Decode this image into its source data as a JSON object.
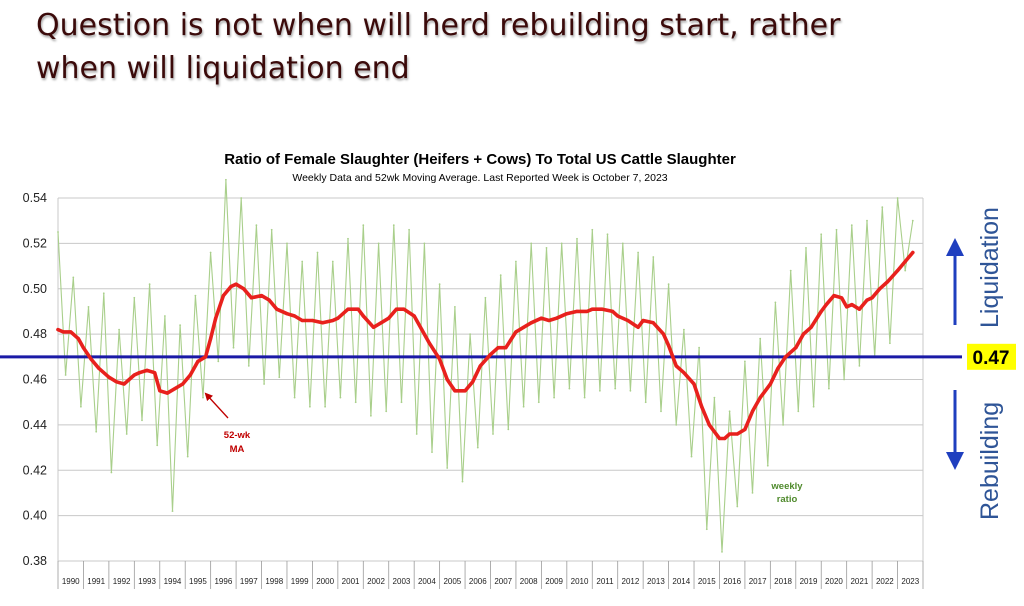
{
  "slide": {
    "title_line1": "Question is not when will herd rebuilding start, rather",
    "title_line2": "when will liquidation end"
  },
  "chart_data": {
    "type": "line",
    "title": "Ratio of Female Slaughter (Heifers + Cows) To Total US Cattle Slaughter",
    "subtitle": "Weekly Data and 52wk Moving Average.  Last Reported Week is October 7, 2023",
    "xlabel": "",
    "ylabel": "",
    "ylim": [
      0.38,
      0.54
    ],
    "yticks": [
      "0.54",
      "0.52",
      "0.50",
      "0.48",
      "0.46",
      "0.44",
      "0.42",
      "0.40",
      "0.38"
    ],
    "xlim": [
      1990,
      2024
    ],
    "xticks": [
      "1990",
      "1991",
      "1992",
      "1993",
      "1994",
      "1995",
      "1996",
      "1997",
      "1998",
      "1999",
      "2000",
      "2001",
      "2002",
      "2003",
      "2004",
      "2005",
      "2006",
      "2007",
      "2008",
      "2009",
      "2010",
      "2011",
      "2012",
      "2013",
      "2014",
      "2015",
      "2016",
      "2017",
      "2018",
      "2019",
      "2020",
      "2021",
      "2022",
      "2023"
    ],
    "grid": "horizontal",
    "colors": {
      "moving_average": "#e8211d",
      "weekly": "#a9cf8b",
      "reference": "#1a1aa6",
      "arrows": "#1f3fbf",
      "highlight": "#ffff00",
      "side_text": "#2f5597"
    },
    "series": [
      {
        "name": "52-wk MA",
        "x": [
          1990.0,
          1990.2,
          1990.5,
          1990.8,
          1991.0,
          1991.3,
          1991.6,
          1992.0,
          1992.3,
          1992.6,
          1993.0,
          1993.2,
          1993.5,
          1993.8,
          1994.0,
          1994.3,
          1994.6,
          1994.9,
          1995.2,
          1995.5,
          1995.8,
          1996.0,
          1996.2,
          1996.5,
          1996.8,
          1997.0,
          1997.3,
          1997.6,
          1998.0,
          1998.3,
          1998.6,
          1999.0,
          1999.3,
          1999.6,
          2000.0,
          2000.4,
          2000.8,
          2001.0,
          2001.4,
          2001.8,
          2002.0,
          2002.4,
          2002.7,
          2003.0,
          2003.3,
          2003.6,
          2004.0,
          2004.3,
          2004.6,
          2005.0,
          2005.3,
          2005.6,
          2006.0,
          2006.3,
          2006.6,
          2007.0,
          2007.3,
          2007.6,
          2008.0,
          2008.3,
          2008.6,
          2009.0,
          2009.3,
          2009.6,
          2010.0,
          2010.4,
          2010.8,
          2011.0,
          2011.4,
          2011.8,
          2012.0,
          2012.4,
          2012.8,
          2013.0,
          2013.4,
          2013.8,
          2014.0,
          2014.3,
          2014.6,
          2015.0,
          2015.3,
          2015.6,
          2016.0,
          2016.2,
          2016.4,
          2016.7,
          2017.0,
          2017.3,
          2017.6,
          2018.0,
          2018.3,
          2018.6,
          2019.0,
          2019.3,
          2019.6,
          2020.0,
          2020.2,
          2020.5,
          2020.8,
          2021.0,
          2021.2,
          2021.5,
          2021.8,
          2022.0,
          2022.3,
          2022.6,
          2023.0,
          2023.3,
          2023.6
        ],
        "values": [
          0.482,
          0.481,
          0.481,
          0.478,
          0.474,
          0.469,
          0.465,
          0.461,
          0.459,
          0.458,
          0.462,
          0.463,
          0.464,
          0.463,
          0.455,
          0.454,
          0.456,
          0.458,
          0.462,
          0.468,
          0.47,
          0.478,
          0.487,
          0.497,
          0.501,
          0.502,
          0.5,
          0.496,
          0.497,
          0.495,
          0.491,
          0.489,
          0.488,
          0.486,
          0.486,
          0.485,
          0.486,
          0.487,
          0.491,
          0.491,
          0.488,
          0.483,
          0.485,
          0.487,
          0.491,
          0.491,
          0.488,
          0.482,
          0.476,
          0.469,
          0.46,
          0.455,
          0.455,
          0.459,
          0.466,
          0.471,
          0.474,
          0.474,
          0.481,
          0.483,
          0.485,
          0.487,
          0.486,
          0.487,
          0.489,
          0.49,
          0.49,
          0.491,
          0.491,
          0.49,
          0.488,
          0.486,
          0.483,
          0.486,
          0.485,
          0.48,
          0.475,
          0.466,
          0.463,
          0.458,
          0.448,
          0.44,
          0.434,
          0.434,
          0.436,
          0.436,
          0.438,
          0.446,
          0.452,
          0.458,
          0.465,
          0.47,
          0.474,
          0.48,
          0.483,
          0.49,
          0.493,
          0.497,
          0.496,
          0.492,
          0.493,
          0.491,
          0.495,
          0.496,
          0.5,
          0.503,
          0.508,
          0.512,
          0.516
        ]
      },
      {
        "name": "weekly ratio",
        "x": [
          1990.0,
          1990.3,
          1990.6,
          1990.9,
          1991.2,
          1991.5,
          1991.8,
          1992.1,
          1992.4,
          1992.7,
          1993.0,
          1993.3,
          1993.6,
          1993.9,
          1994.2,
          1994.5,
          1994.8,
          1995.1,
          1995.4,
          1995.7,
          1996.0,
          1996.3,
          1996.6,
          1996.9,
          1997.2,
          1997.5,
          1997.8,
          1998.1,
          1998.4,
          1998.7,
          1999.0,
          1999.3,
          1999.6,
          1999.9,
          2000.2,
          2000.5,
          2000.8,
          2001.1,
          2001.4,
          2001.7,
          2002.0,
          2002.3,
          2002.6,
          2002.9,
          2003.2,
          2003.5,
          2003.8,
          2004.1,
          2004.4,
          2004.7,
          2005.0,
          2005.3,
          2005.6,
          2005.9,
          2006.2,
          2006.5,
          2006.8,
          2007.1,
          2007.4,
          2007.7,
          2008.0,
          2008.3,
          2008.6,
          2008.9,
          2009.2,
          2009.5,
          2009.8,
          2010.1,
          2010.4,
          2010.7,
          2011.0,
          2011.3,
          2011.6,
          2011.9,
          2012.2,
          2012.5,
          2012.8,
          2013.1,
          2013.4,
          2013.7,
          2014.0,
          2014.3,
          2014.6,
          2014.9,
          2015.2,
          2015.5,
          2015.8,
          2016.1,
          2016.4,
          2016.7,
          2017.0,
          2017.3,
          2017.6,
          2017.9,
          2018.2,
          2018.5,
          2018.8,
          2019.1,
          2019.4,
          2019.7,
          2020.0,
          2020.3,
          2020.6,
          2020.9,
          2021.2,
          2021.5,
          2021.8,
          2022.1,
          2022.4,
          2022.7,
          2023.0,
          2023.3,
          2023.6
        ],
        "values": [
          0.525,
          0.462,
          0.505,
          0.448,
          0.492,
          0.437,
          0.498,
          0.419,
          0.482,
          0.436,
          0.496,
          0.442,
          0.502,
          0.431,
          0.488,
          0.402,
          0.484,
          0.426,
          0.497,
          0.452,
          0.516,
          0.468,
          0.548,
          0.474,
          0.54,
          0.466,
          0.528,
          0.458,
          0.526,
          0.461,
          0.52,
          0.452,
          0.512,
          0.448,
          0.516,
          0.448,
          0.512,
          0.452,
          0.522,
          0.45,
          0.528,
          0.444,
          0.52,
          0.446,
          0.528,
          0.45,
          0.526,
          0.436,
          0.52,
          0.428,
          0.502,
          0.421,
          0.492,
          0.415,
          0.48,
          0.43,
          0.496,
          0.436,
          0.506,
          0.438,
          0.512,
          0.448,
          0.52,
          0.45,
          0.518,
          0.452,
          0.52,
          0.456,
          0.522,
          0.452,
          0.526,
          0.455,
          0.524,
          0.456,
          0.52,
          0.455,
          0.516,
          0.45,
          0.514,
          0.446,
          0.502,
          0.44,
          0.482,
          0.426,
          0.474,
          0.394,
          0.452,
          0.384,
          0.446,
          0.404,
          0.468,
          0.41,
          0.478,
          0.422,
          0.494,
          0.44,
          0.508,
          0.446,
          0.518,
          0.448,
          0.524,
          0.456,
          0.526,
          0.46,
          0.528,
          0.466,
          0.53,
          0.47,
          0.536,
          0.476,
          0.54,
          0.508,
          0.53
        ]
      }
    ],
    "reference_line": {
      "value": 0.47,
      "label": "0.47"
    },
    "annotations": {
      "ma_label_line1": "52-wk",
      "ma_label_line2": "MA",
      "weekly_label_line1": "weekly",
      "weekly_label_line2": "ratio",
      "liquidation": "Liquidation",
      "rebuilding": "Rebuilding"
    }
  }
}
